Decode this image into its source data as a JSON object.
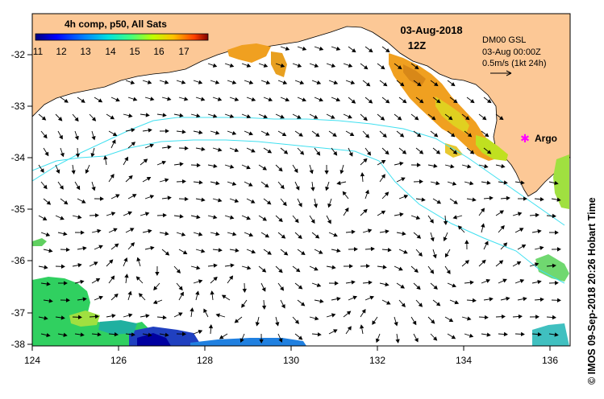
{
  "header": {
    "colorbar_title": "4h comp, p50, All Sats",
    "date": "03-Aug-2018",
    "time": "12Z"
  },
  "colorbar": {
    "ticks": [
      "11",
      "12",
      "13",
      "14",
      "15",
      "16",
      "17"
    ],
    "range": [
      11,
      17.8
    ],
    "colors": [
      "#00007f",
      "#0000ff",
      "#0080ff",
      "#00e0e0",
      "#40ff80",
      "#c0ff00",
      "#ffc000",
      "#ff4000",
      "#800000"
    ]
  },
  "legend": {
    "line1": "DM00 GSL",
    "line2": "03-Aug 00:00Z",
    "line3": "0.5m/s (1kt 24h)"
  },
  "marker": {
    "label": "Argo",
    "color": "#ff00ff"
  },
  "axes": {
    "lon_labels": [
      "124",
      "126",
      "128",
      "130",
      "132",
      "134",
      "136"
    ],
    "lat_labels": [
      "-32",
      "-33",
      "-34",
      "-35",
      "-36",
      "-37",
      "-38"
    ],
    "lon_range": [
      124,
      136.5
    ],
    "lat_range": [
      -38.1,
      -31.45
    ]
  },
  "side_label": "© IMOS 09-Sep-2018 20:26 Hobart Time",
  "colors": {
    "land": "#fcc896",
    "contour": "#40e0f0",
    "arrow": "#000000"
  }
}
